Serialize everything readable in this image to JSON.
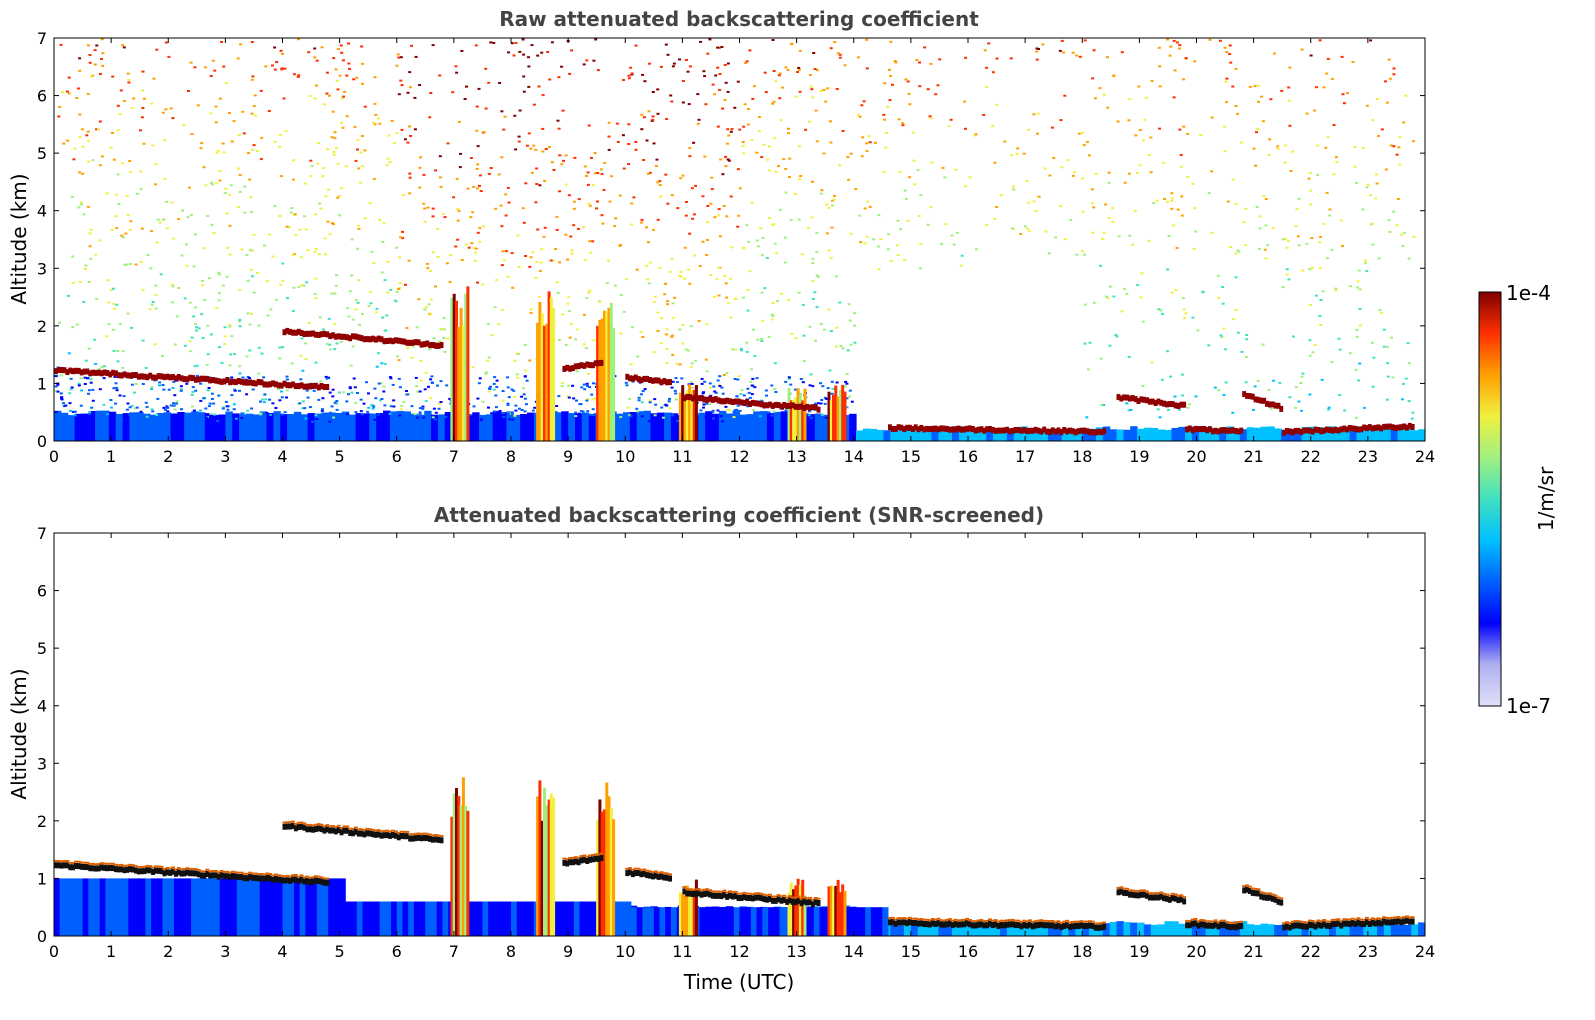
{
  "chart_data": [
    {
      "type": "heatmap",
      "title": "Raw attenuated backscattering coefficient",
      "xlabel": "",
      "ylabel": "Altitude (km)",
      "xlim": [
        0,
        24
      ],
      "ylim": [
        0,
        7
      ],
      "xticks": [
        "0",
        "1",
        "2",
        "3",
        "4",
        "5",
        "6",
        "7",
        "8",
        "9",
        "10",
        "11",
        "12",
        "13",
        "14",
        "15",
        "16",
        "17",
        "18",
        "19",
        "20",
        "21",
        "22",
        "23",
        "24"
      ],
      "yticks": [
        "0",
        "1",
        "2",
        "3",
        "4",
        "5",
        "6",
        "7"
      ],
      "features": {
        "cloud_layers": [
          {
            "t": [
              0.0,
              4.8
            ],
            "alt": [
              1.22,
              0.92
            ]
          },
          {
            "t": [
              4.0,
              6.8
            ],
            "alt": [
              1.9,
              1.65
            ]
          },
          {
            "t": [
              8.9,
              9.6
            ],
            "alt": [
              1.25,
              1.35
            ]
          },
          {
            "t": [
              10.0,
              10.8
            ],
            "alt": [
              1.1,
              1.0
            ]
          },
          {
            "t": [
              11.0,
              13.4
            ],
            "alt": [
              0.75,
              0.55
            ]
          },
          {
            "t": [
              14.6,
              18.4
            ],
            "alt": [
              0.22,
              0.15
            ]
          },
          {
            "t": [
              18.6,
              19.8
            ],
            "alt": [
              0.75,
              0.6
            ]
          },
          {
            "t": [
              19.8,
              20.8
            ],
            "alt": [
              0.2,
              0.15
            ]
          },
          {
            "t": [
              20.8,
              21.5
            ],
            "alt": [
              0.8,
              0.55
            ]
          },
          {
            "t": [
              21.5,
              23.8
            ],
            "alt": [
              0.15,
              0.25
            ]
          }
        ],
        "precipitation_shafts": [
          7.1,
          8.6,
          9.65,
          11.1,
          13.0,
          13.7
        ]
      }
    },
    {
      "type": "heatmap",
      "title": "Attenuated backscattering coefficient (SNR-screened)",
      "xlabel": "Time (UTC)",
      "ylabel": "Altitude (km)",
      "xlim": [
        0,
        24
      ],
      "ylim": [
        0,
        7
      ],
      "xticks": [
        "0",
        "1",
        "2",
        "3",
        "4",
        "5",
        "6",
        "7",
        "8",
        "9",
        "10",
        "11",
        "12",
        "13",
        "14",
        "15",
        "16",
        "17",
        "18",
        "19",
        "20",
        "21",
        "22",
        "23",
        "24"
      ],
      "yticks": [
        "0",
        "1",
        "2",
        "3",
        "4",
        "5",
        "6",
        "7"
      ]
    }
  ],
  "colorbar": {
    "max_label": "1e-4",
    "min_label": "1e-7",
    "unit_label": "1/m/sr",
    "colors": [
      "#e0e0f8",
      "#b0b0f0",
      "#0000ff",
      "#0060ff",
      "#00c0ff",
      "#40e0c0",
      "#a0f080",
      "#f0f040",
      "#ffa000",
      "#ff3000",
      "#800000"
    ]
  }
}
